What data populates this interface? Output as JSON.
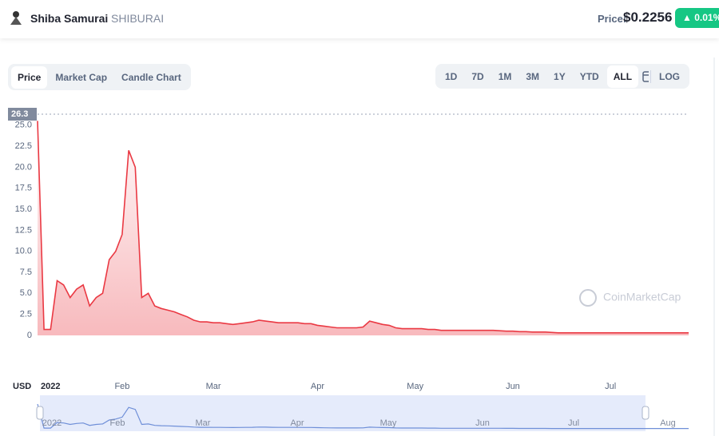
{
  "header": {
    "name": "Shiba Samurai",
    "symbol": "SHIBURAI",
    "price_label": "Price:",
    "price": "$0.2256",
    "change": "0.01%"
  },
  "tabs": [
    "Price",
    "Market Cap",
    "Candle Chart"
  ],
  "ranges": [
    "1D",
    "7D",
    "1M",
    "3M",
    "1Y",
    "YTD",
    "ALL",
    "LOG"
  ],
  "currency": "USD",
  "watermark": "CoinMarketCap",
  "navigator_labels": [
    "2022",
    "Feb",
    "Mar",
    "Apr",
    "May",
    "Jun",
    "Jul",
    "Aug"
  ],
  "chart_data": {
    "type": "line",
    "color": "#ea3943",
    "grid": false,
    "ylim": [
      0,
      26.3
    ],
    "ymax_label": "26.3",
    "yticks": [
      0,
      {
        "value": 2.5,
        "label": "2.5"
      },
      {
        "value": 5,
        "label": "5.0"
      },
      {
        "value": 7.5,
        "label": "7.5"
      },
      {
        "value": 10,
        "label": "10.0"
      },
      {
        "value": 12.5,
        "label": "12.5"
      },
      {
        "value": 15,
        "label": "15.0"
      },
      {
        "value": 17.5,
        "label": "17.5"
      },
      {
        "value": 20,
        "label": "20.0"
      },
      {
        "value": 22.5,
        "label": "22.5"
      },
      {
        "value": 25,
        "label": "25.0"
      }
    ],
    "categories": [
      null,
      null,
      "2022",
      null,
      null,
      null,
      null,
      null,
      null,
      null,
      null,
      null,
      null,
      "Feb",
      null,
      null,
      null,
      null,
      null,
      null,
      null,
      null,
      null,
      null,
      null,
      null,
      null,
      "Mar",
      null,
      null,
      null,
      null,
      null,
      null,
      null,
      null,
      null,
      null,
      null,
      null,
      null,
      null,
      null,
      "Apr",
      null,
      null,
      null,
      null,
      null,
      null,
      null,
      null,
      null,
      null,
      null,
      null,
      null,
      null,
      "May",
      null,
      null,
      null,
      null,
      null,
      null,
      null,
      null,
      null,
      null,
      null,
      null,
      null,
      null,
      "Jun",
      null,
      null,
      null,
      null,
      null,
      null,
      null,
      null,
      null,
      null,
      null,
      null,
      null,
      null,
      "Jul",
      null,
      null,
      null,
      null,
      null,
      null,
      null,
      null,
      null,
      null,
      null,
      null
    ],
    "values": [
      25.5,
      0.7,
      0.7,
      6.5,
      6,
      4.5,
      5.5,
      6,
      3.5,
      4.5,
      5,
      9,
      10,
      12,
      22,
      20,
      4.5,
      5,
      3.5,
      3.2,
      3,
      2.8,
      2.5,
      2.2,
      1.8,
      1.6,
      1.6,
      1.5,
      1.5,
      1.4,
      1.3,
      1.4,
      1.5,
      1.6,
      1.8,
      1.7,
      1.6,
      1.5,
      1.5,
      1.5,
      1.5,
      1.4,
      1.4,
      1.2,
      1.1,
      1,
      0.9,
      0.9,
      0.9,
      0.9,
      1,
      1.7,
      1.5,
      1.3,
      1.2,
      0.9,
      0.8,
      0.8,
      0.8,
      0.8,
      0.7,
      0.7,
      0.6,
      0.6,
      0.6,
      0.6,
      0.6,
      0.6,
      0.6,
      0.6,
      0.6,
      0.55,
      0.5,
      0.5,
      0.45,
      0.45,
      0.4,
      0.4,
      0.4,
      0.35,
      0.3,
      0.3,
      0.3,
      0.3,
      0.3,
      0.3,
      0.3,
      0.3,
      0.3,
      0.3,
      0.3,
      0.3,
      0.3,
      0.3,
      0.3,
      0.3,
      0.3,
      0.3,
      0.3,
      0.3,
      0.3
    ]
  }
}
